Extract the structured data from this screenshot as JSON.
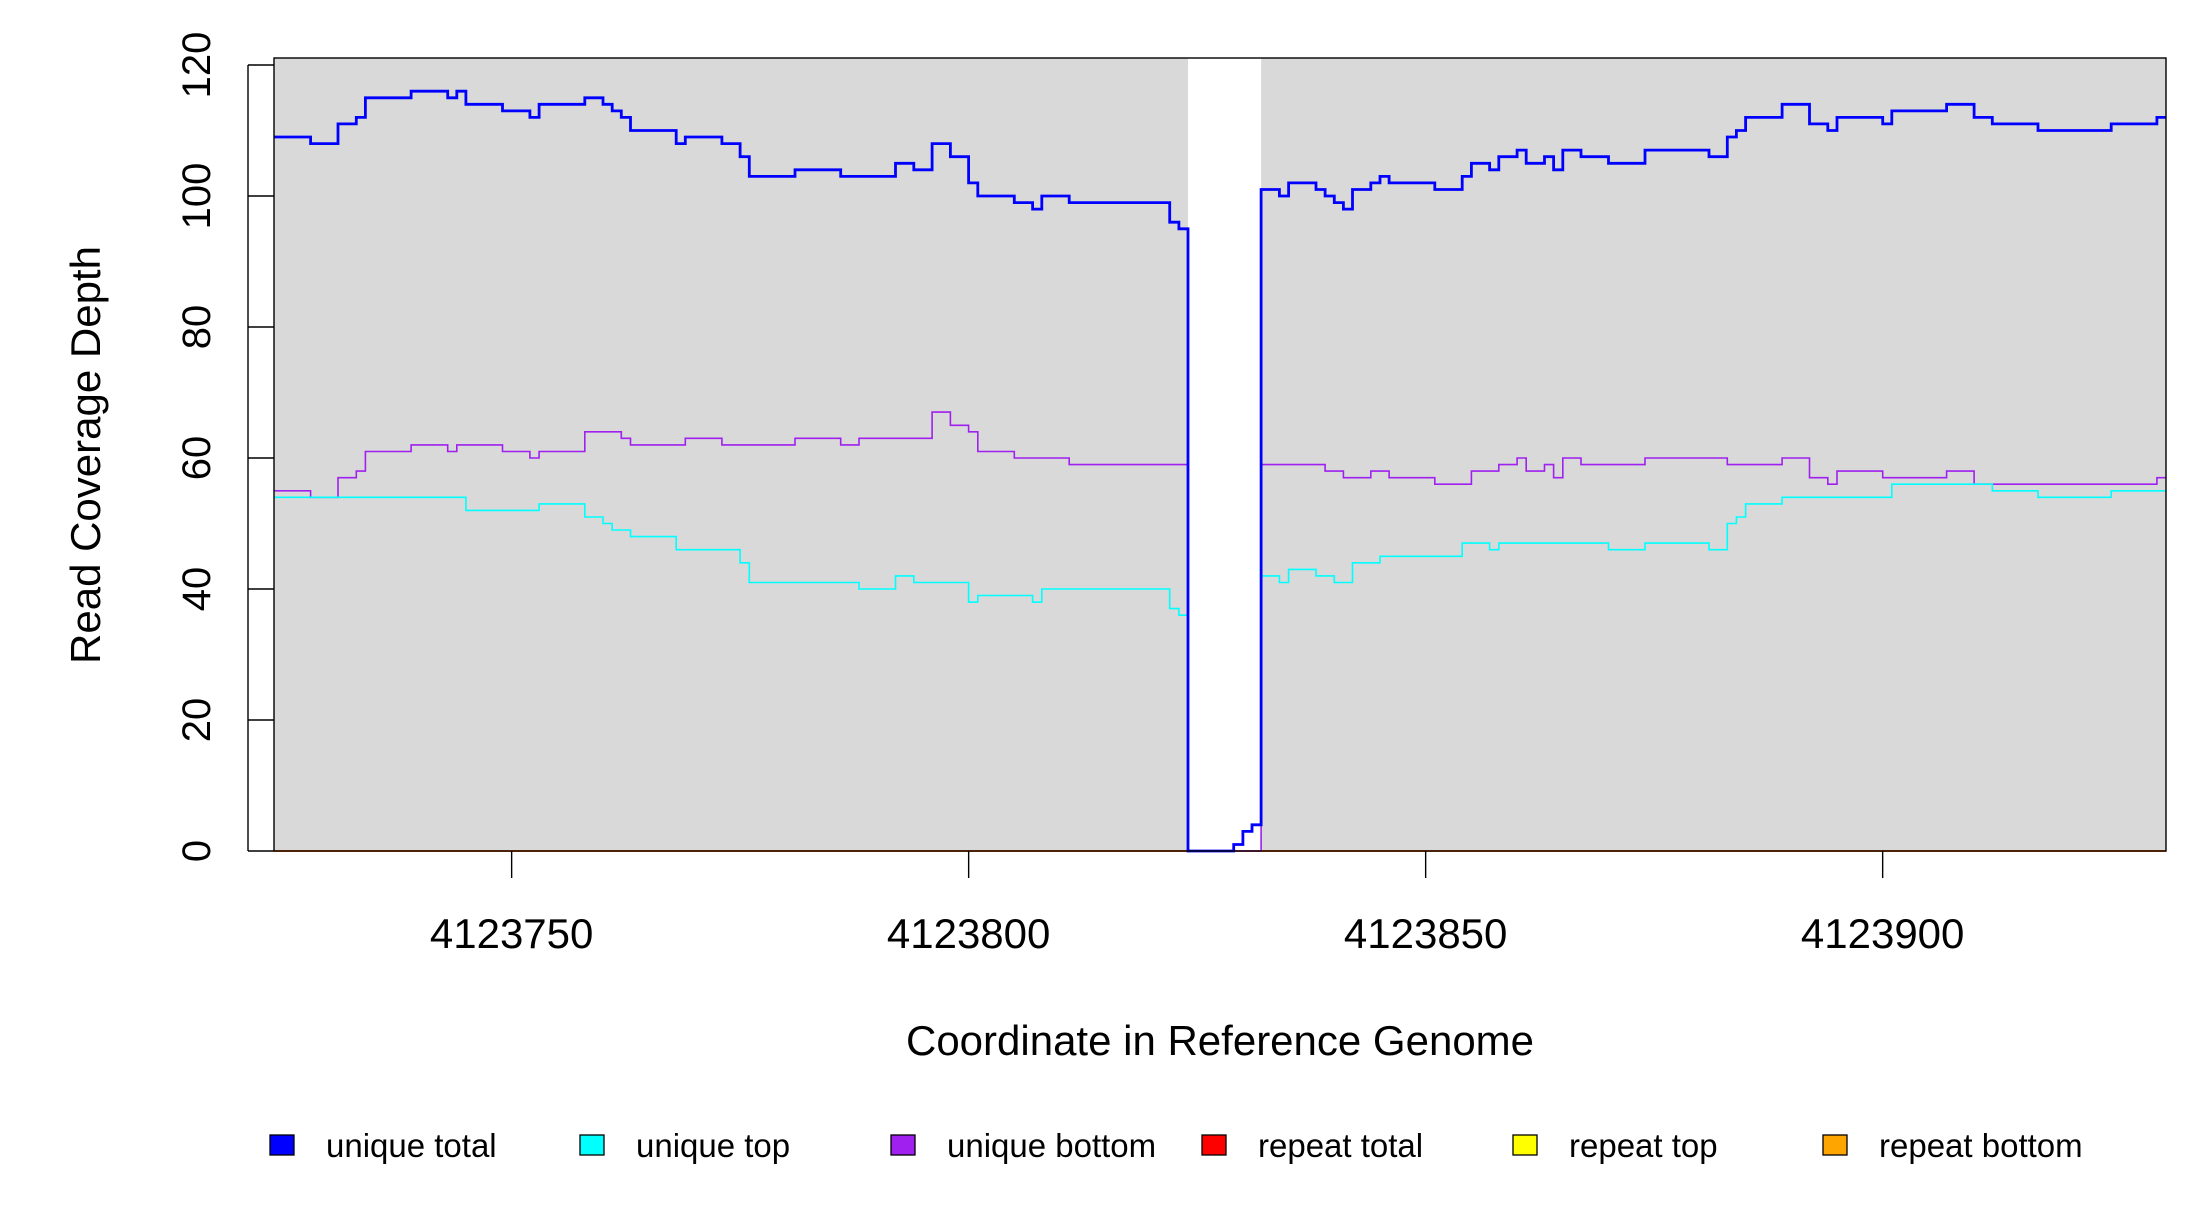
{
  "chart_data": {
    "type": "line",
    "step": true,
    "title": "",
    "xlabel": "Coordinate in Reference Genome",
    "ylabel": "Read Coverage Depth",
    "xlim": [
      4123724,
      4123931
    ],
    "ylim": [
      0,
      120
    ],
    "xticks": [
      4123750,
      4123800,
      4123850,
      4123900
    ],
    "xtick_labels": [
      "4123750",
      "4123800",
      "4123850",
      "4123900"
    ],
    "yticks": [
      0,
      20,
      40,
      60,
      80,
      100,
      120
    ],
    "ytick_labels": [
      "0",
      "20",
      "40",
      "60",
      "80",
      "100",
      "120"
    ],
    "grid": false,
    "background_color": "#d9d9d9",
    "highlight_region": {
      "x": [
        4123824,
        4123832
      ],
      "color": "#ffffff"
    },
    "legend_position": "bottom",
    "series": [
      {
        "name": "unique total",
        "color": "#0000ff",
        "steps": [
          [
            4123724,
            109
          ],
          [
            4123728,
            108
          ],
          [
            4123731,
            111
          ],
          [
            4123733,
            112
          ],
          [
            4123734,
            115
          ],
          [
            4123739,
            116
          ],
          [
            4123743,
            115
          ],
          [
            4123744,
            116
          ],
          [
            4123745,
            114
          ],
          [
            4123749,
            113
          ],
          [
            4123752,
            112
          ],
          [
            4123753,
            114
          ],
          [
            4123758,
            115
          ],
          [
            4123760,
            114
          ],
          [
            4123761,
            113
          ],
          [
            4123762,
            112
          ],
          [
            4123763,
            110
          ],
          [
            4123768,
            108
          ],
          [
            4123769,
            109
          ],
          [
            4123773,
            108
          ],
          [
            4123775,
            106
          ],
          [
            4123776,
            103
          ],
          [
            4123781,
            104
          ],
          [
            4123786,
            103
          ],
          [
            4123792,
            105
          ],
          [
            4123794,
            104
          ],
          [
            4123796,
            108
          ],
          [
            4123798,
            106
          ],
          [
            4123800,
            102
          ],
          [
            4123801,
            100
          ],
          [
            4123805,
            99
          ],
          [
            4123807,
            98
          ],
          [
            4123808,
            100
          ],
          [
            4123811,
            99
          ],
          [
            4123822,
            96
          ],
          [
            4123823,
            95
          ],
          [
            4123824,
            0
          ],
          [
            4123829,
            1
          ],
          [
            4123830,
            3
          ],
          [
            4123831,
            4
          ],
          [
            4123832,
            101
          ],
          [
            4123834,
            100
          ],
          [
            4123835,
            102
          ],
          [
            4123838,
            101
          ],
          [
            4123839,
            100
          ],
          [
            4123840,
            99
          ],
          [
            4123841,
            98
          ],
          [
            4123842,
            101
          ],
          [
            4123844,
            102
          ],
          [
            4123845,
            103
          ],
          [
            4123846,
            102
          ],
          [
            4123851,
            101
          ],
          [
            4123854,
            103
          ],
          [
            4123855,
            105
          ],
          [
            4123857,
            104
          ],
          [
            4123858,
            106
          ],
          [
            4123860,
            107
          ],
          [
            4123861,
            105
          ],
          [
            4123863,
            106
          ],
          [
            4123864,
            104
          ],
          [
            4123865,
            107
          ],
          [
            4123867,
            106
          ],
          [
            4123870,
            105
          ],
          [
            4123874,
            107
          ],
          [
            4123881,
            106
          ],
          [
            4123883,
            109
          ],
          [
            4123884,
            110
          ],
          [
            4123885,
            112
          ],
          [
            4123889,
            114
          ],
          [
            4123892,
            111
          ],
          [
            4123894,
            110
          ],
          [
            4123895,
            112
          ],
          [
            4123900,
            111
          ],
          [
            4123901,
            113
          ],
          [
            4123907,
            114
          ],
          [
            4123910,
            112
          ],
          [
            4123912,
            111
          ],
          [
            4123917,
            110
          ],
          [
            4123925,
            111
          ],
          [
            4123930,
            112
          ]
        ]
      },
      {
        "name": "unique top",
        "color": "#00ffff",
        "steps": [
          [
            4123724,
            54
          ],
          [
            4123745,
            52
          ],
          [
            4123753,
            53
          ],
          [
            4123758,
            51
          ],
          [
            4123760,
            50
          ],
          [
            4123761,
            49
          ],
          [
            4123763,
            48
          ],
          [
            4123768,
            46
          ],
          [
            4123775,
            44
          ],
          [
            4123776,
            41
          ],
          [
            4123788,
            40
          ],
          [
            4123792,
            42
          ],
          [
            4123794,
            41
          ],
          [
            4123800,
            38
          ],
          [
            4123801,
            39
          ],
          [
            4123807,
            38
          ],
          [
            4123808,
            40
          ],
          [
            4123822,
            37
          ],
          [
            4123823,
            36
          ],
          [
            4123824,
            0
          ],
          [
            4123829,
            1
          ],
          [
            4123830,
            3
          ],
          [
            4123831,
            4
          ],
          [
            4123832,
            42
          ],
          [
            4123834,
            41
          ],
          [
            4123835,
            43
          ],
          [
            4123838,
            42
          ],
          [
            4123840,
            41
          ],
          [
            4123842,
            44
          ],
          [
            4123845,
            45
          ],
          [
            4123854,
            47
          ],
          [
            4123857,
            46
          ],
          [
            4123858,
            47
          ],
          [
            4123870,
            46
          ],
          [
            4123874,
            47
          ],
          [
            4123881,
            46
          ],
          [
            4123883,
            50
          ],
          [
            4123884,
            51
          ],
          [
            4123885,
            53
          ],
          [
            4123889,
            54
          ],
          [
            4123901,
            56
          ],
          [
            4123912,
            55
          ],
          [
            4123917,
            54
          ],
          [
            4123925,
            55
          ]
        ]
      },
      {
        "name": "unique bottom",
        "color": "#a020f0",
        "steps": [
          [
            4123724,
            55
          ],
          [
            4123728,
            54
          ],
          [
            4123731,
            57
          ],
          [
            4123733,
            58
          ],
          [
            4123734,
            61
          ],
          [
            4123739,
            62
          ],
          [
            4123743,
            61
          ],
          [
            4123744,
            62
          ],
          [
            4123749,
            61
          ],
          [
            4123752,
            60
          ],
          [
            4123753,
            61
          ],
          [
            4123758,
            64
          ],
          [
            4123762,
            63
          ],
          [
            4123763,
            62
          ],
          [
            4123769,
            63
          ],
          [
            4123773,
            62
          ],
          [
            4123781,
            63
          ],
          [
            4123786,
            62
          ],
          [
            4123788,
            63
          ],
          [
            4123796,
            67
          ],
          [
            4123798,
            65
          ],
          [
            4123800,
            64
          ],
          [
            4123801,
            61
          ],
          [
            4123805,
            60
          ],
          [
            4123811,
            59
          ],
          [
            4123824,
            0
          ],
          [
            4123832,
            59
          ],
          [
            4123839,
            58
          ],
          [
            4123841,
            57
          ],
          [
            4123844,
            58
          ],
          [
            4123846,
            57
          ],
          [
            4123851,
            56
          ],
          [
            4123855,
            58
          ],
          [
            4123858,
            59
          ],
          [
            4123860,
            60
          ],
          [
            4123861,
            58
          ],
          [
            4123863,
            59
          ],
          [
            4123864,
            57
          ],
          [
            4123865,
            60
          ],
          [
            4123867,
            59
          ],
          [
            4123874,
            60
          ],
          [
            4123883,
            59
          ],
          [
            4123889,
            60
          ],
          [
            4123892,
            57
          ],
          [
            4123894,
            56
          ],
          [
            4123895,
            58
          ],
          [
            4123900,
            57
          ],
          [
            4123907,
            58
          ],
          [
            4123910,
            56
          ],
          [
            4123930,
            57
          ]
        ]
      },
      {
        "name": "repeat total",
        "color": "#ff0000",
        "steps": [
          [
            4123724,
            0
          ]
        ]
      },
      {
        "name": "repeat top",
        "color": "#ffff00",
        "steps": [
          [
            4123724,
            0
          ]
        ]
      },
      {
        "name": "repeat bottom",
        "color": "#ffa500",
        "steps": [
          [
            4123724,
            0
          ]
        ]
      }
    ]
  }
}
